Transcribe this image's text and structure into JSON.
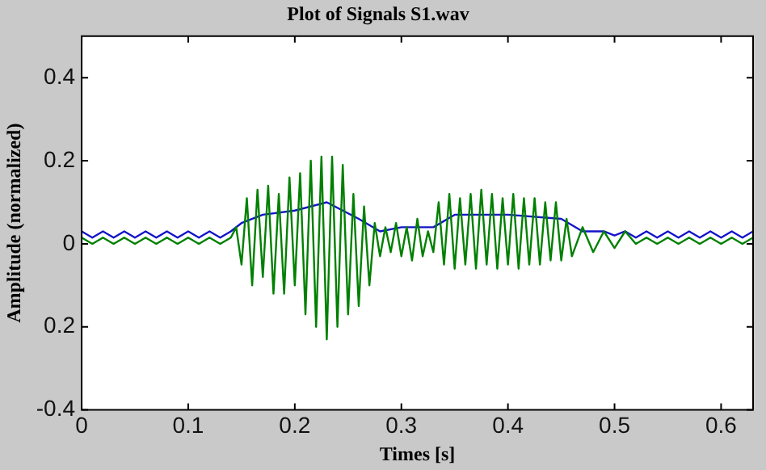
{
  "chart_data": {
    "type": "line",
    "title": "Plot of Signals S1.wav",
    "xlabel": "Times [s]",
    "ylabel": "Amplitude (normalized)",
    "xlim": [
      0,
      0.63
    ],
    "xticks": [
      0,
      0.1,
      0.2,
      0.3,
      0.4,
      0.5,
      0.6
    ],
    "ylim": [
      -0.4,
      0.5
    ],
    "yticks": [
      {
        "value": -0.4,
        "label": "-0.4"
      },
      {
        "value": -0.2,
        "label": "0.2"
      },
      0,
      0.2,
      0.4
    ],
    "grid": false,
    "legend": false,
    "marker": "none",
    "line_style": "solid",
    "series": [
      {
        "color": "#008000",
        "x": [
          0,
          0.01,
          0.02,
          0.03,
          0.04,
          0.05,
          0.06,
          0.07,
          0.08,
          0.09,
          0.1,
          0.11,
          0.12,
          0.13,
          0.14,
          0.145,
          0.15,
          0.155,
          0.16,
          0.165,
          0.17,
          0.175,
          0.18,
          0.185,
          0.19,
          0.195,
          0.2,
          0.205,
          0.21,
          0.215,
          0.22,
          0.225,
          0.23,
          0.235,
          0.24,
          0.245,
          0.25,
          0.255,
          0.26,
          0.265,
          0.27,
          0.275,
          0.28,
          0.285,
          0.29,
          0.295,
          0.3,
          0.305,
          0.31,
          0.315,
          0.32,
          0.325,
          0.33,
          0.335,
          0.34,
          0.345,
          0.35,
          0.355,
          0.36,
          0.365,
          0.37,
          0.375,
          0.38,
          0.385,
          0.39,
          0.395,
          0.4,
          0.405,
          0.41,
          0.415,
          0.42,
          0.425,
          0.43,
          0.435,
          0.44,
          0.445,
          0.45,
          0.455,
          0.46,
          0.47,
          0.48,
          0.49,
          0.5,
          0.51,
          0.52,
          0.53,
          0.54,
          0.55,
          0.56,
          0.57,
          0.58,
          0.59,
          0.6,
          0.61,
          0.62,
          0.63
        ],
        "values": [
          0.015,
          0,
          0.015,
          0,
          0.015,
          0,
          0.015,
          0,
          0.015,
          0,
          0.015,
          0,
          0.015,
          0,
          0.015,
          0.04,
          -0.05,
          0.11,
          -0.1,
          0.13,
          -0.08,
          0.14,
          -0.12,
          0.12,
          -0.12,
          0.16,
          -0.1,
          0.17,
          -0.17,
          0.2,
          -0.2,
          0.21,
          -0.23,
          0.21,
          -0.2,
          0.19,
          -0.17,
          0.12,
          -0.15,
          0.09,
          -0.1,
          0.05,
          -0.03,
          0.04,
          -0.02,
          0.05,
          -0.03,
          0.04,
          -0.04,
          0.06,
          -0.03,
          0.03,
          -0.02,
          0.1,
          -0.05,
          0.12,
          -0.06,
          0.11,
          -0.05,
          0.12,
          -0.06,
          0.13,
          -0.05,
          0.12,
          -0.06,
          0.11,
          -0.05,
          0.12,
          -0.06,
          0.11,
          -0.05,
          0.11,
          -0.05,
          0.1,
          -0.04,
          0.1,
          -0.04,
          0.06,
          -0.03,
          0.04,
          -0.02,
          0.03,
          -0.01,
          0.03,
          0,
          0.015,
          0,
          0.015,
          0,
          0.015,
          0,
          0.015,
          0,
          0.015,
          0,
          0.015
        ]
      },
      {
        "color": "#1414c8",
        "x": [
          0,
          0.01,
          0.02,
          0.03,
          0.04,
          0.05,
          0.06,
          0.07,
          0.08,
          0.09,
          0.1,
          0.11,
          0.12,
          0.13,
          0.14,
          0.15,
          0.17,
          0.2,
          0.23,
          0.26,
          0.28,
          0.3,
          0.33,
          0.35,
          0.4,
          0.45,
          0.47,
          0.49,
          0.5,
          0.51,
          0.52,
          0.53,
          0.54,
          0.55,
          0.56,
          0.57,
          0.58,
          0.59,
          0.6,
          0.61,
          0.62,
          0.63
        ],
        "values": [
          0.03,
          0.015,
          0.03,
          0.015,
          0.03,
          0.015,
          0.03,
          0.015,
          0.03,
          0.015,
          0.03,
          0.015,
          0.03,
          0.015,
          0.03,
          0.05,
          0.07,
          0.08,
          0.1,
          0.06,
          0.03,
          0.04,
          0.04,
          0.07,
          0.07,
          0.06,
          0.03,
          0.03,
          0.02,
          0.03,
          0.015,
          0.03,
          0.015,
          0.03,
          0.015,
          0.03,
          0.015,
          0.03,
          0.015,
          0.03,
          0.015,
          0.03
        ]
      }
    ]
  }
}
